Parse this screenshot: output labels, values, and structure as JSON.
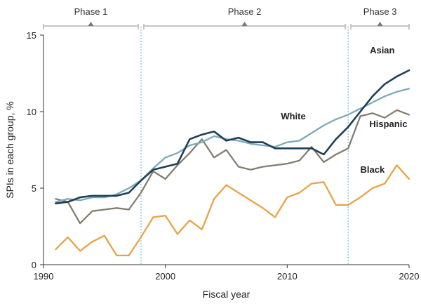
{
  "chart_data": {
    "type": "line",
    "xlabel": "Fiscal year",
    "ylabel": "SPIs in each group, %",
    "xlim": [
      1990,
      2020
    ],
    "ylim": [
      0,
      15
    ],
    "xticks": [
      1990,
      2000,
      2010,
      2020
    ],
    "yticks": [
      0,
      5,
      10,
      15
    ],
    "grid": false,
    "phases": [
      {
        "name": "Phase 1",
        "start": 1990,
        "end": 1998
      },
      {
        "name": "Phase 2",
        "start": 1998,
        "end": 2015
      },
      {
        "name": "Phase 3",
        "start": 2015,
        "end": 2020
      }
    ],
    "phase_dividers": [
      1998,
      2015
    ],
    "x": [
      1991,
      1992,
      1993,
      1994,
      1995,
      1996,
      1997,
      1998,
      1999,
      2000,
      2001,
      2002,
      2003,
      2004,
      2005,
      2006,
      2007,
      2008,
      2009,
      2010,
      2011,
      2012,
      2013,
      2014,
      2015,
      2016,
      2017,
      2018,
      2019,
      2020
    ],
    "series": [
      {
        "name": "Asian",
        "color": "#1f3f55",
        "values": [
          4.0,
          4.1,
          4.4,
          4.5,
          4.5,
          4.5,
          4.7,
          5.5,
          6.2,
          6.4,
          6.6,
          8.2,
          8.5,
          8.7,
          8.1,
          8.3,
          8.0,
          8.0,
          7.6,
          7.6,
          7.6,
          7.6,
          7.2,
          8.2,
          9.0,
          10.0,
          11.0,
          11.8,
          12.3,
          12.7
        ]
      },
      {
        "name": "White",
        "color": "#7ea9b9",
        "values": [
          4.1,
          4.3,
          4.2,
          4.4,
          4.4,
          4.6,
          5.0,
          5.5,
          6.3,
          7.0,
          7.3,
          7.8,
          8.0,
          8.4,
          8.2,
          8.1,
          7.9,
          7.8,
          7.7,
          8.0,
          8.1,
          8.6,
          9.1,
          9.5,
          9.8,
          10.2,
          10.6,
          11.0,
          11.3,
          11.5
        ]
      },
      {
        "name": "Hispanic",
        "color": "#857d6f",
        "values": [
          4.3,
          4.1,
          2.7,
          3.5,
          3.6,
          3.7,
          3.6,
          4.7,
          6.1,
          5.6,
          6.5,
          7.3,
          8.2,
          7.0,
          7.5,
          6.4,
          6.2,
          6.4,
          6.5,
          6.6,
          6.8,
          7.7,
          6.7,
          7.2,
          7.6,
          9.7,
          9.9,
          9.6,
          10.1,
          9.8
        ]
      },
      {
        "name": "Black",
        "color": "#e8a347",
        "values": [
          1.0,
          1.8,
          0.9,
          1.5,
          1.9,
          0.6,
          0.6,
          1.8,
          3.1,
          3.2,
          2.0,
          2.9,
          2.3,
          4.3,
          5.2,
          4.7,
          4.2,
          3.7,
          3.1,
          4.4,
          4.7,
          5.3,
          5.4,
          3.9,
          3.9,
          4.4,
          5.0,
          5.3,
          6.5,
          5.6
        ]
      }
    ]
  }
}
